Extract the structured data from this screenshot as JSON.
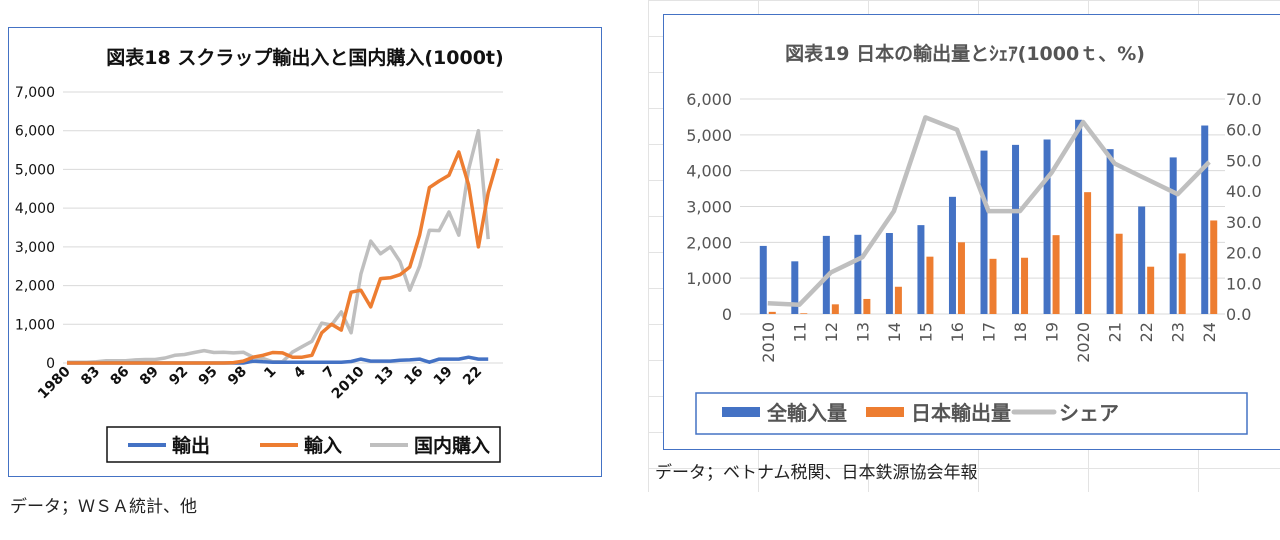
{
  "chart_data": [
    {
      "type": "line",
      "title": "図表18  スクラップ輸出入と国内購入(1000t)",
      "ylim": [
        0,
        7000
      ],
      "yticks": [
        "0",
        "1,000",
        "2,000",
        "3,000",
        "4,000",
        "5,000",
        "6,000",
        "7,000"
      ],
      "x": [
        1980,
        1981,
        1982,
        1983,
        1984,
        1985,
        1986,
        1987,
        1988,
        1989,
        1990,
        1991,
        1992,
        1993,
        1994,
        1995,
        1996,
        1997,
        1998,
        1999,
        2000,
        2001,
        2002,
        2003,
        2004,
        2005,
        2006,
        2007,
        2008,
        2009,
        2010,
        2011,
        2012,
        2013,
        2014,
        2015,
        2016,
        2017,
        2018,
        2019,
        2020,
        2021,
        2022,
        2023,
        2024
      ],
      "xtick_labels": [
        "1980",
        "83",
        "86",
        "89",
        "92",
        "95",
        "98",
        "1",
        "4",
        "7",
        "2010",
        "13",
        "16",
        "19",
        "22"
      ],
      "legend": "bottom",
      "series": [
        {
          "name": "輸出",
          "color": "#4472c4",
          "values": [
            0,
            0,
            0,
            0,
            0,
            0,
            0,
            0,
            0,
            0,
            0,
            0,
            0,
            0,
            0,
            0,
            0,
            0,
            0,
            50,
            30,
            20,
            20,
            20,
            20,
            20,
            20,
            20,
            20,
            40,
            100,
            50,
            50,
            50,
            70,
            80,
            100,
            20,
            100,
            100,
            100,
            150,
            100,
            100,
            null
          ]
        },
        {
          "name": "輸入",
          "color": "#ed7d31",
          "values": [
            0,
            0,
            0,
            0,
            0,
            0,
            0,
            0,
            0,
            0,
            0,
            0,
            0,
            0,
            0,
            0,
            0,
            10,
            50,
            150,
            200,
            270,
            260,
            150,
            150,
            200,
            780,
            1000,
            850,
            1830,
            1880,
            1450,
            2180,
            2200,
            2280,
            2480,
            3300,
            4530,
            4700,
            4850,
            5450,
            4600,
            3000,
            4400,
            5280
          ]
        },
        {
          "name": "国内購入",
          "color": "#bfbfbf",
          "values": [
            20,
            20,
            20,
            30,
            60,
            60,
            60,
            80,
            90,
            90,
            130,
            200,
            220,
            270,
            320,
            270,
            280,
            260,
            280,
            150,
            120,
            30,
            30,
            280,
            420,
            560,
            1030,
            980,
            1320,
            780,
            2300,
            3150,
            2820,
            3000,
            2620,
            1880,
            2500,
            3430,
            3420,
            3900,
            3300,
            5000,
            6000,
            3200,
            null
          ]
        }
      ]
    },
    {
      "type": "bar",
      "title": "図表19  日本の輸出量とｼｪｱ(1000ｔ、%)",
      "categories": [
        "2010",
        "11",
        "12",
        "13",
        "14",
        "15",
        "16",
        "17",
        "18",
        "19",
        "2020",
        "21",
        "22",
        "23",
        "24"
      ],
      "ylim": [
        0,
        6000
      ],
      "yticks": [
        "0",
        "1,000",
        "2,000",
        "3,000",
        "4,000",
        "5,000",
        "6,000"
      ],
      "y2lim": [
        0,
        70
      ],
      "y2ticks": [
        "0.0",
        "10.0",
        "20.0",
        "30.0",
        "40.0",
        "50.0",
        "60.0",
        "70.0"
      ],
      "legend": "bottom",
      "series": [
        {
          "name": "全輸入量",
          "type": "bar",
          "color": "#4472c4",
          "values": [
            1900,
            1470,
            2180,
            2210,
            2260,
            2480,
            3270,
            4560,
            4720,
            4870,
            5420,
            4600,
            3000,
            4370,
            5260
          ]
        },
        {
          "name": "日本輸出量",
          "type": "bar",
          "color": "#ed7d31",
          "values": [
            60,
            20,
            270,
            420,
            760,
            1600,
            2000,
            1540,
            1570,
            2200,
            3400,
            2240,
            1320,
            1690,
            2610
          ]
        },
        {
          "name": "シェア",
          "type": "line",
          "axis": "right",
          "color": "#bfbfbf",
          "values": [
            3.5,
            3,
            13.5,
            18.5,
            33.5,
            64,
            60,
            33.5,
            33.5,
            46,
            62.5,
            49,
            44,
            39,
            49.5
          ]
        }
      ]
    }
  ],
  "footers": {
    "left": "データ；ＷＳＡ統計、他",
    "right": "データ；ベトナム税関、日本鉄源協会年報"
  }
}
